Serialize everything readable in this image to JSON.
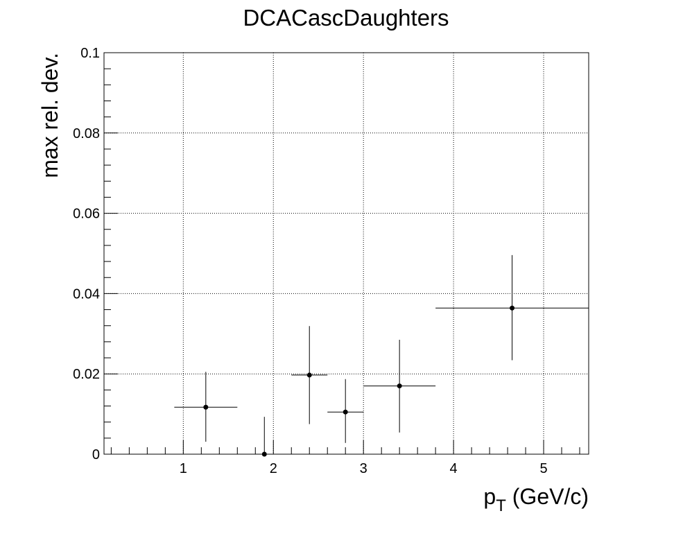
{
  "chart_data": {
    "type": "scatter",
    "title": "DCACascDaughters",
    "xlabel_main": "p",
    "xlabel_sub": "T",
    "xlabel_unit": " (GeV/c)",
    "ylabel": "max rel. dev.",
    "xlim": [
      0.12,
      5.5
    ],
    "ylim": [
      0,
      0.1
    ],
    "grid": true,
    "x_ticks": [
      {
        "value": 1,
        "label": "1"
      },
      {
        "value": 2,
        "label": "2"
      },
      {
        "value": 3,
        "label": "3"
      },
      {
        "value": 4,
        "label": "4"
      },
      {
        "value": 5,
        "label": "5"
      }
    ],
    "y_ticks": [
      {
        "value": 0,
        "label": "0"
      },
      {
        "value": 0.02,
        "label": "0.02"
      },
      {
        "value": 0.04,
        "label": "0.04"
      },
      {
        "value": 0.06,
        "label": "0.06"
      },
      {
        "value": 0.08,
        "label": "0.08"
      },
      {
        "value": 0.1,
        "label": "0.1"
      }
    ],
    "points": [
      {
        "x": 1.25,
        "y": 0.0117,
        "xlow": 0.9,
        "xhigh": 1.6,
        "ylow": 0.0031,
        "yhigh": 0.0205
      },
      {
        "x": 1.9,
        "y": 0.0,
        "xlow": 1.6,
        "xhigh": 2.2,
        "ylow": 0.0,
        "yhigh": 0.0093
      },
      {
        "x": 2.4,
        "y": 0.0197,
        "xlow": 2.2,
        "xhigh": 2.6,
        "ylow": 0.0075,
        "yhigh": 0.0319
      },
      {
        "x": 2.8,
        "y": 0.0105,
        "xlow": 2.6,
        "xhigh": 3.0,
        "ylow": 0.0028,
        "yhigh": 0.0187
      },
      {
        "x": 3.4,
        "y": 0.017,
        "xlow": 3.0,
        "xhigh": 3.8,
        "ylow": 0.0054,
        "yhigh": 0.0285
      },
      {
        "x": 4.65,
        "y": 0.0364,
        "xlow": 3.8,
        "xhigh": 5.5,
        "ylow": 0.0234,
        "yhigh": 0.0496
      }
    ]
  }
}
